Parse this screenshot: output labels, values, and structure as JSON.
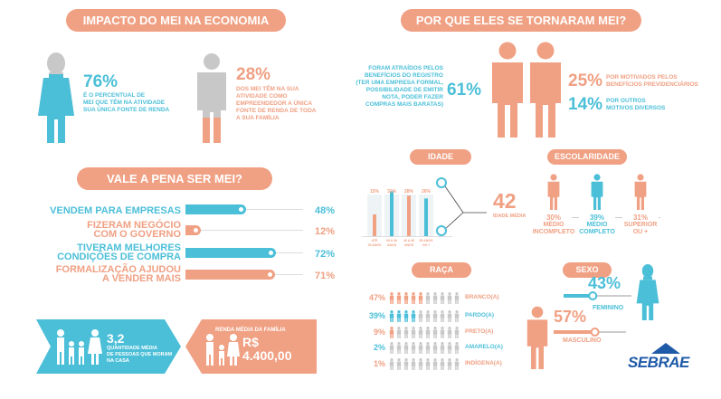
{
  "colors": {
    "orange": "#f0a083",
    "blue": "#4bbfd8",
    "gray": "#c8c8c8",
    "darkblue": "#1f5aa8"
  },
  "impacto": {
    "title": "IMPACTO DO MEI NA ECONOMIA",
    "stat1": {
      "value": "76%",
      "lines": [
        "É O PERCENTUAL DE",
        "MEI QUE TÊM NA ATIVIDADE",
        "SUA ÚNICA FONTE DE RENDA"
      ],
      "fill": 0.76
    },
    "stat2": {
      "value": "28%",
      "lines": [
        "DOS MEI TÊM NA SUA",
        "ATIVIDADE COMO",
        "EMPREENDEDOR A ÚNICA",
        "FONTE DE RENDA DE TODA",
        "A SUA FAMÍLIA"
      ],
      "fill": 0.28
    }
  },
  "porque": {
    "title": "POR QUE ELES SE TORNARAM MEI?",
    "left": {
      "value": "61%",
      "lines": [
        "FORAM ATRAÍDOS PELOS",
        "BENEFÍCIOS DO REGISTRO",
        "(TER UMA EMPRESA FORMAL,",
        "POSSIBILIDADE DE EMITIR",
        "NOTA, PODER FAZER",
        "COMPRAS MAIS BARATAS)"
      ]
    },
    "right": [
      {
        "value": "25%",
        "lines": [
          "POR MOTIVADOS PELOS",
          "BENEFÍCIOS PREVIDENCIÁRIOS"
        ]
      },
      {
        "value": "14%",
        "lines": [
          "POR OUTROS",
          "MOTIVOS DIVERSOS"
        ]
      }
    ]
  },
  "vale": {
    "title": "VALE A PENA SER MEI?",
    "rows": [
      {
        "label": [
          "VENDEM PARA EMPRESAS"
        ],
        "value": "48%",
        "pct": 48,
        "color": "#4bbfd8"
      },
      {
        "label": [
          "FIZERAM NEGÓCIO",
          "COM O GOVERNO"
        ],
        "value": "12%",
        "pct": 12,
        "color": "#f0a083"
      },
      {
        "label": [
          "TIVERAM MELHORES",
          "CONDIÇÕES DE COMPRA"
        ],
        "value": "72%",
        "pct": 72,
        "color": "#4bbfd8"
      },
      {
        "label": [
          "FORMALIZAÇÃO AJUDOU",
          "A VENDER MAIS"
        ],
        "value": "71%",
        "pct": 71,
        "color": "#f0a083"
      }
    ]
  },
  "familia": {
    "value": "3,2",
    "lines": [
      "QUANTIDADE MÉDIA",
      "DE PESSOAS QUE MORAM",
      "NA CASA"
    ]
  },
  "renda": {
    "label": "RENDA MÉDIA DA FAMÍLIA",
    "currency": "R$",
    "value": "4.400,00"
  },
  "idade": {
    "title": "IDADE",
    "bars": [
      {
        "label": "15%",
        "pct": 15,
        "cat": [
          "ATÉ",
          "29 ANOS"
        ]
      },
      {
        "label": "31%",
        "pct": 31,
        "cat": [
          "30 A 39",
          "ANOS"
        ]
      },
      {
        "label": "28%",
        "pct": 28,
        "cat": [
          "40 A 49",
          "ANOS"
        ]
      },
      {
        "label": "26%",
        "pct": 26,
        "cat": [
          "50 ANOS",
          "OU +"
        ]
      }
    ],
    "avg": "42",
    "avg_label": "IDADE MÉDIA"
  },
  "escolaridade": {
    "title": "ESCOLARIDADE",
    "items": [
      {
        "value": "30%",
        "label": [
          "MÉDIO",
          "INCOMPLETO"
        ],
        "color": "#f0a083"
      },
      {
        "value": "39%",
        "label": [
          "MÉDIO",
          "COMPLETO"
        ],
        "color": "#4bbfd8"
      },
      {
        "value": "31%",
        "label": [
          "SUPERIOR",
          "OU +"
        ],
        "color": "#f0a083"
      }
    ]
  },
  "raca": {
    "title": "RAÇA",
    "rows": [
      {
        "value": "47%",
        "label": "BRANCO(A)",
        "filled": 5,
        "color": "#f0a083"
      },
      {
        "value": "39%",
        "label": "PARDO(A)",
        "filled": 4,
        "color": "#4bbfd8"
      },
      {
        "value": "9%",
        "label": "PRETO(A)",
        "filled": 1,
        "color": "#f0a083"
      },
      {
        "value": "2%",
        "label": "AMARELO(A)",
        "filled": 0,
        "color": "#4bbfd8"
      },
      {
        "value": "1%",
        "label": "INDÍGENA(A)",
        "filled": 0,
        "color": "#f0a083"
      }
    ]
  },
  "sexo": {
    "title": "SEXO",
    "fem": {
      "value": "43%",
      "label": "FEMININO",
      "pct": 43
    },
    "masc": {
      "value": "57%",
      "label": "MASCULINO",
      "pct": 57
    }
  },
  "logo": "SEBRAE"
}
